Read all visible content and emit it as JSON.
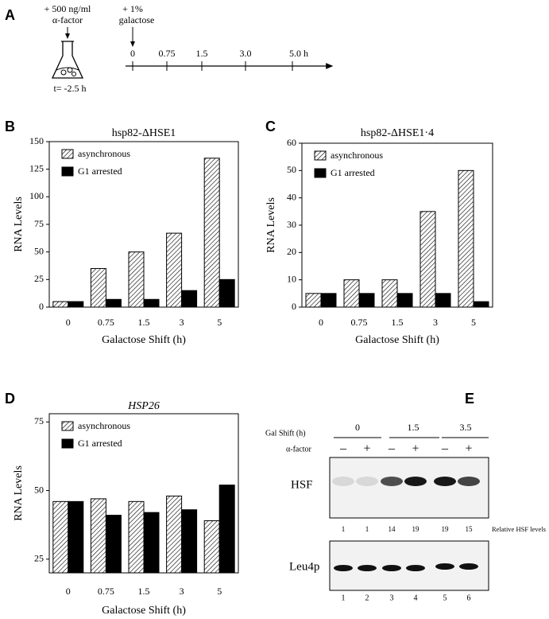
{
  "panel_a": {
    "label": "A",
    "alpha_dose": "+ 500 ng/ml",
    "alpha_name": "α-factor",
    "gal_dose": "+ 1%",
    "gal_name": "galactose",
    "start_time": "t= -2.5 h",
    "timepoints": [
      "0",
      "0.75",
      "1.5",
      "3.0",
      "5.0 h"
    ]
  },
  "chart_data": [
    {
      "panel": "B",
      "type": "bar",
      "title": "hsp82-ΔHSE1",
      "x_label": "Galactose Shift (h)",
      "y_label": "RNA Levels",
      "categories": [
        "0",
        "0.75",
        "1.5",
        "3",
        "5"
      ],
      "ylim": [
        0,
        150
      ],
      "yticks": [
        0,
        25,
        50,
        75,
        100,
        125,
        150
      ],
      "series": [
        {
          "name": "asynchronous",
          "color": "#000000",
          "hatch": true,
          "values": [
            5,
            35,
            50,
            67,
            135
          ]
        },
        {
          "name": "G1 arrested",
          "color": "#000000",
          "hatch": false,
          "values": [
            5,
            7,
            7,
            15,
            25
          ]
        }
      ]
    },
    {
      "panel": "C",
      "type": "bar",
      "title": "hsp82-ΔHSE1·4",
      "x_label": "Galactose Shift (h)",
      "y_label": "RNA Levels",
      "categories": [
        "0",
        "0.75",
        "1.5",
        "3",
        "5"
      ],
      "ylim": [
        0,
        60
      ],
      "yticks": [
        0,
        10,
        20,
        30,
        40,
        50,
        60
      ],
      "series": [
        {
          "name": "asynchronous",
          "color": "#000000",
          "hatch": true,
          "values": [
            5,
            10,
            10,
            35,
            50
          ]
        },
        {
          "name": "G1 arrested",
          "color": "#000000",
          "hatch": false,
          "values": [
            5,
            5,
            5,
            5,
            2
          ]
        }
      ]
    },
    {
      "panel": "D",
      "type": "bar",
      "title": "HSP26",
      "x_label": "Galactose Shift (h)",
      "y_label": "RNA Levels",
      "categories": [
        "0",
        "0.75",
        "1.5",
        "3",
        "5"
      ],
      "ylim": [
        20,
        78
      ],
      "yticks": [
        25,
        50,
        75
      ],
      "series": [
        {
          "name": "asynchronous",
          "color": "#000000",
          "hatch": true,
          "values": [
            46,
            47,
            46,
            48,
            39
          ]
        },
        {
          "name": "G1 arrested",
          "color": "#000000",
          "hatch": false,
          "values": [
            46,
            41,
            42,
            43,
            52
          ]
        }
      ]
    }
  ],
  "panel_e": {
    "label": "E",
    "gal_shift_label": "Gal Shift (h)",
    "gal_shifts": [
      "0",
      "1.5",
      "3.5"
    ],
    "alpha_label": "α-factor",
    "signs": [
      "–",
      "+",
      "–",
      "+",
      "–",
      "+"
    ],
    "hsf_label": "HSF",
    "relative_levels": [
      1,
      1,
      14,
      19,
      19,
      15
    ],
    "relative_label": "Relative HSF levels",
    "leu_label": "Leu4p",
    "lanes": [
      1,
      2,
      3,
      4,
      5,
      6
    ]
  }
}
